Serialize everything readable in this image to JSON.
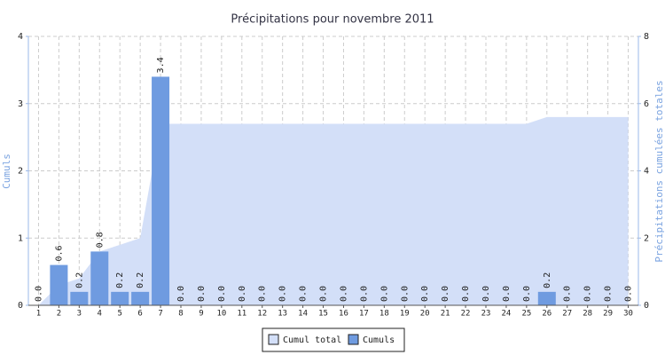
{
  "chart_data": {
    "type": "bar",
    "title": "Précipitations pour novembre 2011",
    "y_label": "Cumuls",
    "y2_label": "Précipitations cumulées totales",
    "categories": [
      "1",
      "2",
      "3",
      "4",
      "5",
      "6",
      "7",
      "8",
      "9",
      "10",
      "11",
      "12",
      "13",
      "14",
      "15",
      "16",
      "17",
      "18",
      "19",
      "20",
      "21",
      "22",
      "23",
      "24",
      "25",
      "26",
      "27",
      "28",
      "29",
      "30"
    ],
    "ylim": [
      0,
      4
    ],
    "yticks": [
      0,
      1,
      2,
      3,
      4
    ],
    "y2lim": [
      0,
      8
    ],
    "y2ticks": [
      0,
      2,
      4,
      6,
      8
    ],
    "grid": true,
    "series": [
      {
        "name": "Cumul total",
        "type": "area",
        "axis": "y2",
        "color": "#d3dff8",
        "values": [
          0,
          0.6,
          0.8,
          1.6,
          1.8,
          2.0,
          5.4,
          5.4,
          5.4,
          5.4,
          5.4,
          5.4,
          5.4,
          5.4,
          5.4,
          5.4,
          5.4,
          5.4,
          5.4,
          5.4,
          5.4,
          5.4,
          5.4,
          5.4,
          5.4,
          5.6,
          5.6,
          5.6,
          5.6,
          5.6
        ]
      },
      {
        "name": "Cumuls",
        "type": "bar",
        "color": "#6f9be0",
        "values": [
          0,
          0.6,
          0.2,
          0.8,
          0.2,
          0.2,
          3.4,
          0,
          0,
          0,
          0,
          0,
          0,
          0,
          0,
          0,
          0,
          0,
          0,
          0,
          0,
          0,
          0,
          0,
          0,
          0.2,
          0,
          0,
          0,
          0
        ],
        "value_labels": [
          "0.0",
          "0.6",
          "0.2",
          "0.8",
          "0.2",
          "0.2",
          "3.4",
          "0.0",
          "0.0",
          "0.0",
          "0.0",
          "0.0",
          "0.0",
          "0.0",
          "0.0",
          "0.0",
          "0.0",
          "0.0",
          "0.0",
          "0.0",
          "0.0",
          "0.0",
          "0.0",
          "0.0",
          "0.0",
          "0.2",
          "0.0",
          "0.0",
          "0.0",
          "0.0"
        ]
      }
    ]
  }
}
